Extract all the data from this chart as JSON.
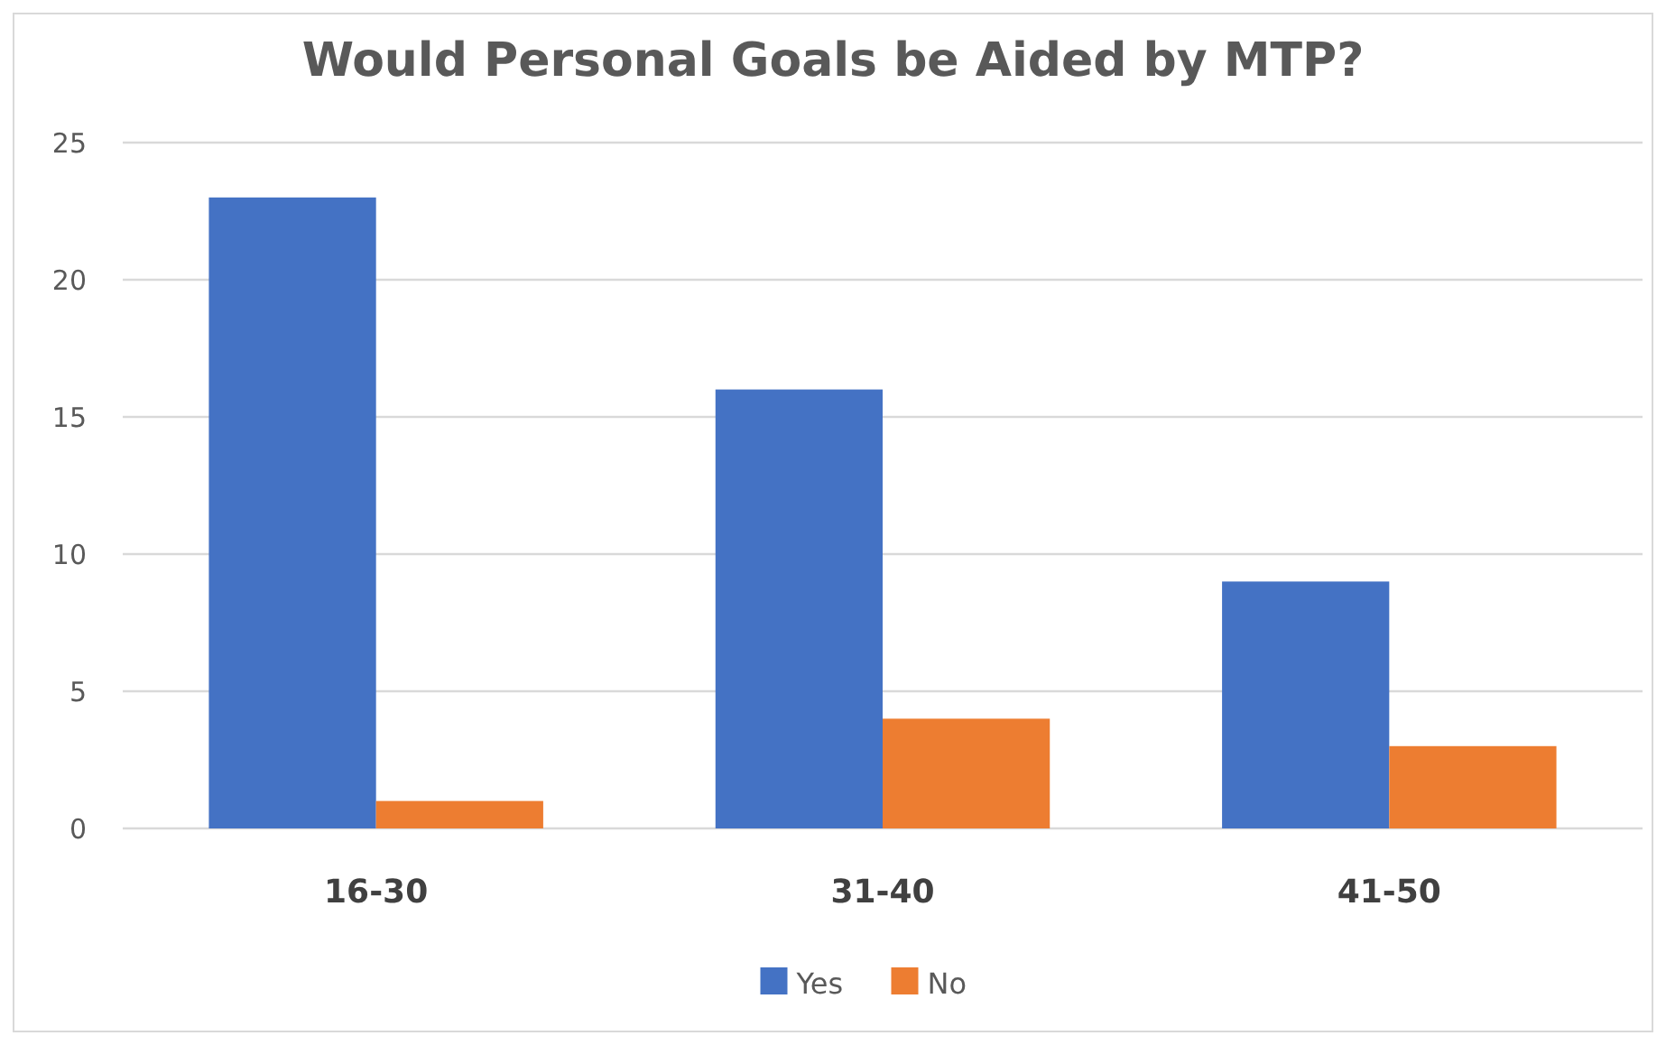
{
  "chart_data": {
    "type": "bar",
    "title": "Would Personal Goals be Aided by MTP?",
    "categories": [
      "16-30",
      "31-40",
      "41-50"
    ],
    "series": [
      {
        "name": "Yes",
        "color": "#4472c4",
        "values": [
          23,
          16,
          9
        ]
      },
      {
        "name": "No",
        "color": "#ed7d31",
        "values": [
          1,
          4,
          3
        ]
      }
    ],
    "ylim": [
      0,
      25
    ],
    "yticks": [
      0,
      5,
      10,
      15,
      20,
      25
    ],
    "grid": "y",
    "legend": "bottom"
  }
}
